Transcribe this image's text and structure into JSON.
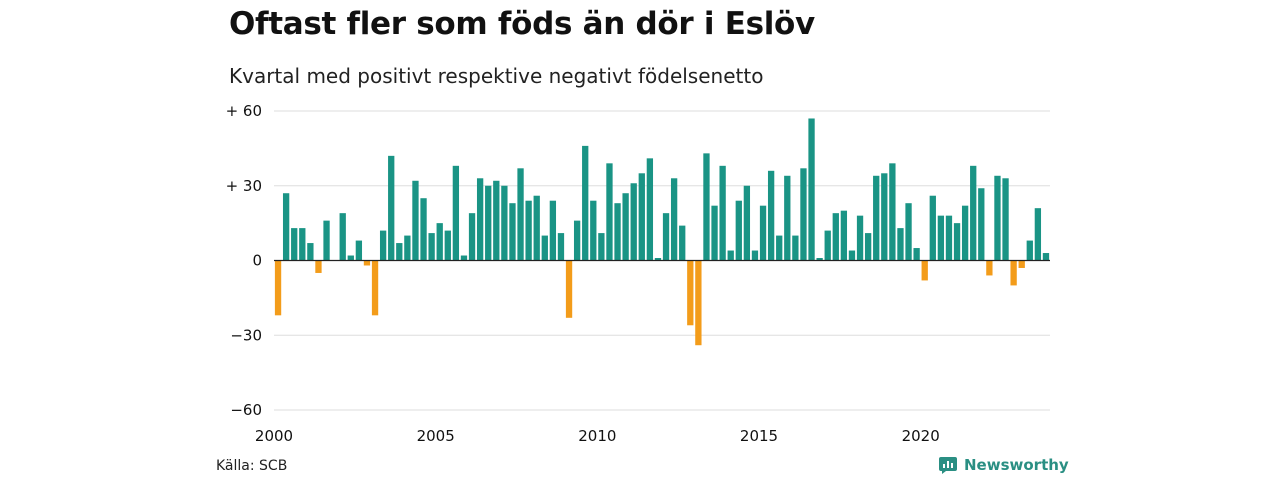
{
  "header": {
    "title": "Oftast fler som föds än dör i Eslöv",
    "subtitle": "Kvartal med positivt respektive negativt födelsenetto"
  },
  "footer": {
    "source": "Källa: SCB",
    "brand": "Newsworthy",
    "brand_icon": "newsworthy-logo-icon",
    "brand_color": "#2a8f83"
  },
  "chart_data": {
    "type": "bar",
    "x_unit": "quarter",
    "x_start": "2000 Q1",
    "x_ticks": [
      2000,
      2005,
      2010,
      2015,
      2020
    ],
    "y_ticks": [
      60,
      30,
      0,
      -30,
      -60
    ],
    "y_tick_labels": [
      "+ 60",
      "+ 30",
      "0",
      "−30",
      "−60"
    ],
    "ylim": [
      -60,
      60
    ],
    "grid": true,
    "colors": {
      "positive": "#1a9485",
      "negative": "#f39c1a"
    },
    "values": [
      -22,
      27,
      13,
      13,
      7,
      -5,
      16,
      0,
      19,
      2,
      8,
      -2,
      -22,
      12,
      42,
      7,
      10,
      32,
      25,
      11,
      15,
      12,
      38,
      2,
      19,
      33,
      30,
      32,
      30,
      23,
      37,
      24,
      26,
      10,
      24,
      11,
      -23,
      16,
      46,
      24,
      11,
      39,
      23,
      27,
      31,
      35,
      41,
      1,
      19,
      33,
      14,
      -26,
      -34,
      43,
      22,
      38,
      4,
      24,
      30,
      4,
      22,
      36,
      10,
      34,
      10,
      37,
      57,
      1,
      12,
      19,
      20,
      4,
      18,
      11,
      34,
      35,
      39,
      13,
      23,
      5,
      -8,
      26,
      18,
      18,
      15,
      22,
      38,
      29,
      -6,
      34,
      33,
      -10,
      -3,
      8,
      21,
      3
    ]
  }
}
